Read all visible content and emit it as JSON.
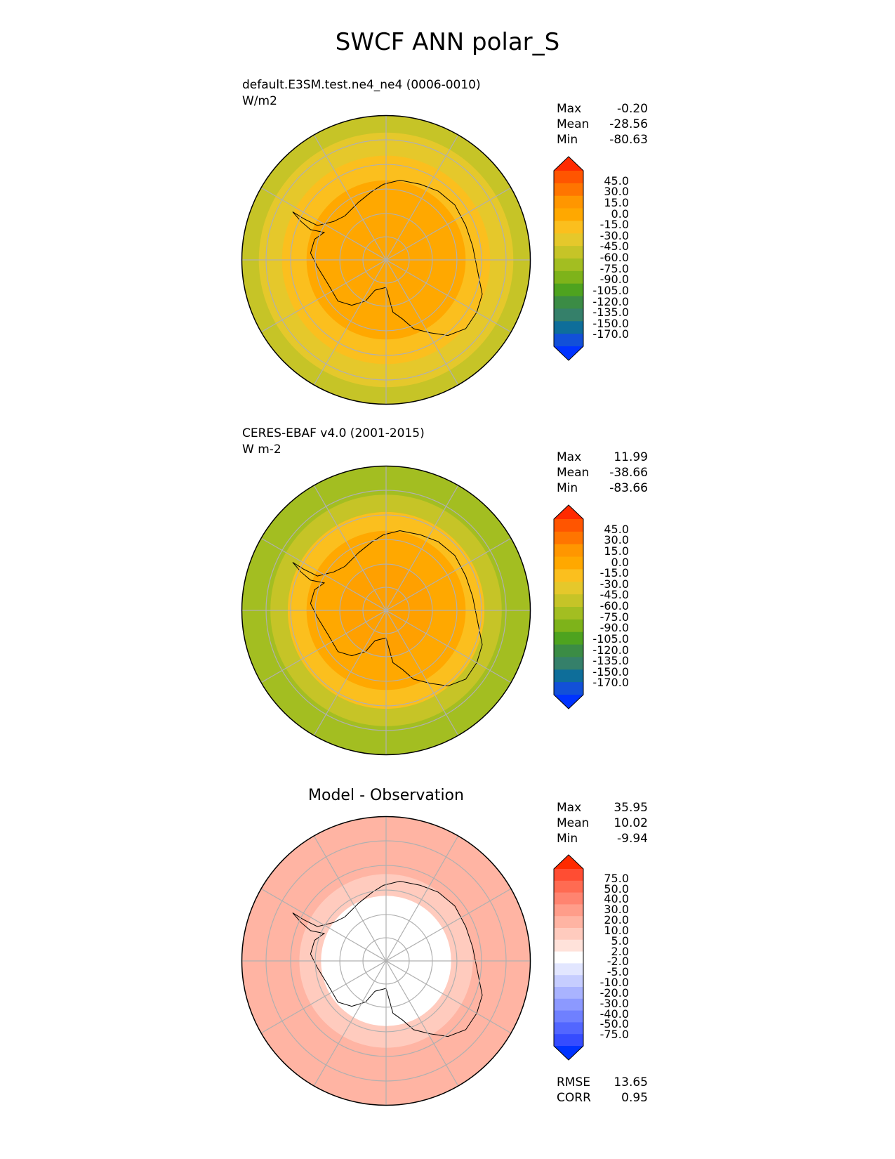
{
  "figure": {
    "title": "SWCF ANN polar_S"
  },
  "panels": [
    {
      "line1": "default.E3SM.test.ne4_ne4 (0006-0010)",
      "line2": "W/m2",
      "stats": [
        {
          "label": "Max",
          "value": "-0.20"
        },
        {
          "label": "Mean",
          "value": "-28.56"
        },
        {
          "label": "Min",
          "value": "-80.63"
        }
      ]
    },
    {
      "line1": "CERES-EBAF v4.0 (2001-2015)",
      "line2": "W m-2",
      "stats": [
        {
          "label": "Max",
          "value": "11.99"
        },
        {
          "label": "Mean",
          "value": "-38.66"
        },
        {
          "label": "Min",
          "value": "-83.66"
        }
      ]
    },
    {
      "title": "Model - Observation",
      "stats": [
        {
          "label": "Max",
          "value": "35.95"
        },
        {
          "label": "Mean",
          "value": "10.02"
        },
        {
          "label": "Min",
          "value": "-9.94"
        }
      ],
      "metrics": [
        {
          "label": "RMSE",
          "value": "13.65"
        },
        {
          "label": "CORR",
          "value": "0.95"
        }
      ]
    }
  ],
  "chart_data": [
    {
      "type": "heatmap",
      "title": "default.E3SM.test.ne4_ne4 (0006-0010)",
      "units": "W/m2",
      "projection": "south-polar-stereographic",
      "field_summary": {
        "max": -0.2,
        "mean": -28.56,
        "min": -80.63
      },
      "colorbar": {
        "levels": [
          "45.0",
          "30.0",
          "15.0",
          "0.0",
          "-15.0",
          "-30.0",
          "-45.0",
          "-60.0",
          "-75.0",
          "-90.0",
          "-105.0",
          "-120.0",
          "-135.0",
          "-150.0",
          "-170.0"
        ],
        "colors": [
          "#ff2a00",
          "#ff5500",
          "#ff7500",
          "#ff9600",
          "#ffa800",
          "#fbbf1e",
          "#e5c82b",
          "#c6c427",
          "#a3be21",
          "#7eb31a",
          "#4ea31f",
          "#3b8c45",
          "#35806a",
          "#0e6e9a",
          "#1250d8",
          "#0033ff"
        ]
      },
      "regions": [
        {
          "name": "interior",
          "ring": [
            0.0,
            0.3
          ],
          "color": "#ffa600"
        },
        {
          "name": "inner-ring",
          "ring": [
            0.3,
            0.55
          ],
          "color": "#ffa800"
        },
        {
          "name": "middle-ring",
          "ring": [
            0.55,
            0.72
          ],
          "color": "#fbbf1e"
        },
        {
          "name": "outer-ring",
          "ring": [
            0.72,
            0.88
          ],
          "color": "#e5c82b"
        },
        {
          "name": "edge",
          "ring": [
            0.88,
            1.0
          ],
          "color": "#c6c427"
        }
      ]
    },
    {
      "type": "heatmap",
      "title": "CERES-EBAF v4.0 (2001-2015)",
      "units": "W m-2",
      "projection": "south-polar-stereographic",
      "field_summary": {
        "max": 11.99,
        "mean": -38.66,
        "min": -83.66
      },
      "colorbar": {
        "levels": [
          "45.0",
          "30.0",
          "15.0",
          "0.0",
          "-15.0",
          "-30.0",
          "-45.0",
          "-60.0",
          "-75.0",
          "-90.0",
          "-105.0",
          "-120.0",
          "-135.0",
          "-150.0",
          "-170.0"
        ],
        "colors": [
          "#ff2a00",
          "#ff5500",
          "#ff7500",
          "#ff9600",
          "#ffa800",
          "#fbbf1e",
          "#e5c82b",
          "#c6c427",
          "#a3be21",
          "#7eb31a",
          "#4ea31f",
          "#3b8c45",
          "#35806a",
          "#0e6e9a",
          "#1250d8",
          "#0033ff"
        ]
      },
      "regions": [
        {
          "name": "interior",
          "ring": [
            0.0,
            0.32
          ],
          "color": "#ffa000"
        },
        {
          "name": "inner-ring",
          "ring": [
            0.32,
            0.55
          ],
          "color": "#ffa800"
        },
        {
          "name": "middle-ring",
          "ring": [
            0.55,
            0.68
          ],
          "color": "#fbbf1e"
        },
        {
          "name": "outer-ring",
          "ring": [
            0.68,
            0.8
          ],
          "color": "#c6c427"
        },
        {
          "name": "edge",
          "ring": [
            0.8,
            1.0
          ],
          "color": "#a3be21"
        }
      ]
    },
    {
      "type": "heatmap",
      "title": "Model - Observation",
      "projection": "south-polar-stereographic",
      "field_summary": {
        "max": 35.95,
        "mean": 10.02,
        "min": -9.94,
        "rmse": 13.65,
        "corr": 0.95
      },
      "colorbar": {
        "levels": [
          "75.0",
          "50.0",
          "40.0",
          "30.0",
          "20.0",
          "10.0",
          "5.0",
          "2.0",
          "-2.0",
          "-5.0",
          "-10.0",
          "-20.0",
          "-30.0",
          "-40.0",
          "-50.0",
          "-75.0"
        ],
        "colors": [
          "#ff2a00",
          "#ff4d33",
          "#ff6b52",
          "#ff8470",
          "#ff9d8a",
          "#ffb4a3",
          "#ffcbbe",
          "#ffe2da",
          "#ffffff",
          "#e2e6ff",
          "#c6cdff",
          "#a9b3ff",
          "#8c99ff",
          "#6f80ff",
          "#5266ff",
          "#354cff",
          "#0033ff"
        ]
      },
      "regions": [
        {
          "name": "interior",
          "ring": [
            0.0,
            0.45
          ],
          "color": "#ffffff"
        },
        {
          "name": "inner-ring",
          "ring": [
            0.45,
            0.6
          ],
          "color": "#ffcbbe"
        },
        {
          "name": "outer-ring",
          "ring": [
            0.6,
            1.0
          ],
          "color": "#ffb4a3"
        }
      ]
    }
  ]
}
